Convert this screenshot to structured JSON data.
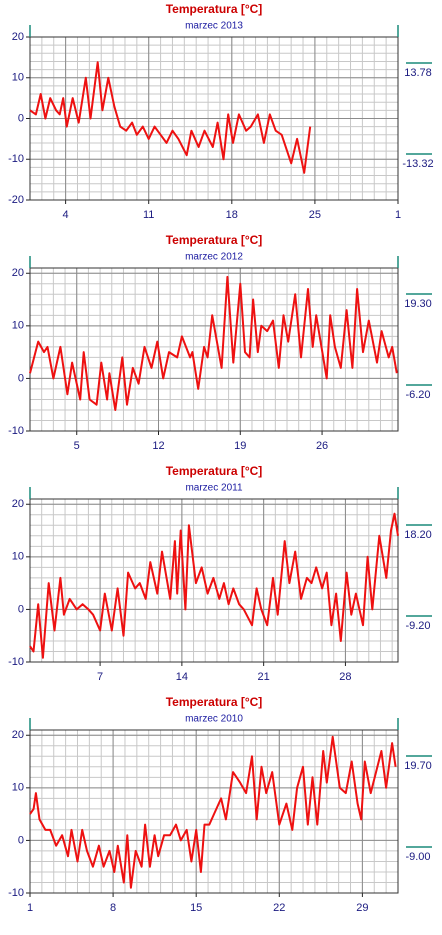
{
  "chart_data": [
    {
      "type": "line",
      "title": "Temperatura [°C]",
      "subtitle": "marzec 2013",
      "color": "#ee1111",
      "x": [
        1,
        1.5,
        1.9,
        2.3,
        2.7,
        3.2,
        3.5,
        3.8,
        4.1,
        4.6,
        5.1,
        5.7,
        6.1,
        6.7,
        7.1,
        7.6,
        8.1,
        8.6,
        9.1,
        9.6,
        10,
        10.5,
        11,
        11.5,
        12,
        12.5,
        13,
        13.5,
        14.2,
        14.6,
        15.2,
        15.7,
        16.4,
        16.8,
        17.3,
        17.7,
        18.1,
        18.6,
        19.2,
        19.6,
        20.2,
        20.7,
        21.2,
        21.7,
        22.2,
        23,
        23.5,
        24.1,
        24.6
      ],
      "values": [
        2,
        1,
        6,
        0,
        5,
        2,
        1,
        5,
        -2,
        5,
        -1,
        10,
        0,
        13.78,
        2,
        10,
        3,
        -2,
        -3,
        -1,
        -4,
        -2,
        -5,
        -2,
        -4,
        -6,
        -3,
        -5,
        -9,
        -3,
        -7,
        -3,
        -7,
        -1,
        -10,
        1,
        -6,
        1,
        -3,
        -2,
        1,
        -6,
        1,
        -3,
        -4,
        -11,
        -5,
        -13.32,
        -2
      ],
      "xlim": [
        1,
        32
      ],
      "xticks": [
        4,
        11,
        18,
        25,
        {
          "value": 32,
          "label": "1"
        }
      ],
      "ylim": [
        -20,
        20
      ],
      "yticks": [
        -20,
        -10,
        0,
        10,
        20
      ],
      "annotations": [
        13.78,
        -13.32
      ],
      "grid": true
    },
    {
      "type": "line",
      "title": "Temperatura [°C]",
      "subtitle": "marzec 2012",
      "color": "#ee1111",
      "x": [
        1,
        1.7,
        2.2,
        2.5,
        3,
        3.6,
        4.2,
        4.6,
        5.3,
        5.6,
        6.1,
        6.7,
        7.1,
        7.6,
        7.8,
        8.3,
        8.9,
        9.3,
        9.8,
        10.3,
        10.8,
        11.4,
        11.9,
        12.4,
        12.9,
        13.6,
        14,
        14.7,
        14.9,
        15.4,
        15.9,
        16.2,
        16.6,
        17.4,
        17.9,
        18.4,
        19,
        19.4,
        19.8,
        20.1,
        20.5,
        20.8,
        21.3,
        21.8,
        22.3,
        22.7,
        23.1,
        23.7,
        24.2,
        24.8,
        25.2,
        25.5,
        26.4,
        26.7,
        27.1,
        27.6,
        28.1,
        28.6,
        29,
        29.5,
        30,
        30.7,
        31.1,
        31.7,
        32,
        32.4
      ],
      "values": [
        1,
        7,
        5,
        6,
        0,
        6,
        -3,
        3,
        -4,
        5,
        -4,
        -5,
        3,
        -4,
        1,
        -6,
        4,
        -5,
        2,
        -1,
        6,
        2,
        7,
        0,
        5,
        4,
        8,
        4,
        5,
        -2,
        6,
        4,
        12,
        2,
        19.3,
        3,
        18,
        5,
        4,
        15,
        5,
        10,
        9,
        11,
        2,
        12,
        7,
        16,
        4,
        17,
        6,
        12,
        0,
        12,
        6,
        2,
        13,
        2,
        17,
        5,
        11,
        3,
        9,
        4,
        6,
        1
      ],
      "xlim": [
        1,
        32.5
      ],
      "xticks": [
        5,
        12,
        19,
        26
      ],
      "ylim": [
        -10,
        21
      ],
      "yticks": [
        -10,
        0,
        10,
        20
      ],
      "annotations": [
        {
          "value": 19.3,
          "label": "19.30"
        },
        {
          "value": -6.2,
          "label": "-6.20"
        }
      ],
      "grid": true
    },
    {
      "type": "line",
      "title": "Temperatura [°C]",
      "subtitle": "marzec 2011",
      "color": "#ee1111",
      "x": [
        1,
        1.3,
        1.7,
        2.1,
        2.6,
        3.1,
        3.6,
        3.9,
        4.4,
        5,
        5.5,
        6,
        6.4,
        7,
        7.4,
        8,
        8.5,
        9,
        9.4,
        10,
        10.4,
        10.9,
        11.3,
        11.9,
        12.3,
        13,
        13.4,
        13.6,
        13.9,
        14.3,
        14.6,
        15.2,
        15.7,
        16.2,
        16.7,
        17.2,
        17.6,
        18,
        18.4,
        18.9,
        19.3,
        20,
        20.4,
        20.8,
        21.3,
        21.8,
        22.2,
        22.8,
        23.2,
        23.7,
        24.2,
        24.7,
        25.1,
        25.5,
        26,
        26.4,
        26.8,
        27.2,
        27.6,
        28.1,
        28.5,
        28.9,
        29.5,
        29.9,
        30.3,
        30.9,
        31.5,
        31.9,
        32.2,
        32.5
      ],
      "values": [
        -7,
        -8,
        1,
        -9.2,
        5,
        -4,
        6,
        -1,
        2,
        0,
        1,
        0,
        -1,
        -4,
        3,
        -4,
        4,
        -5,
        7,
        4,
        5,
        2,
        9,
        3,
        11,
        2,
        13,
        3,
        15,
        0,
        16,
        5,
        8,
        3,
        6,
        2,
        5,
        1,
        4,
        1,
        0,
        -3,
        4,
        0,
        -3,
        6,
        -1,
        13,
        5,
        11,
        2,
        6,
        5,
        8,
        4,
        7,
        -3,
        3,
        -6,
        7,
        -1,
        3,
        -3,
        10,
        0,
        14,
        6,
        15,
        18.2,
        14
      ],
      "xlim": [
        1,
        32.5
      ],
      "xticks": [
        7,
        14,
        21,
        28
      ],
      "ylim": [
        -10,
        21
      ],
      "yticks": [
        -10,
        0,
        10,
        20
      ],
      "annotations": [
        {
          "value": 18.2,
          "label": "18.20"
        },
        {
          "value": -9.2,
          "label": "-9.20"
        }
      ],
      "grid": true
    },
    {
      "type": "line",
      "title": "Temperatura [°C]",
      "subtitle": "marzec 2010",
      "color": "#ee1111",
      "x": [
        1,
        1.3,
        1.5,
        1.8,
        2.3,
        2.7,
        3.2,
        3.7,
        4.2,
        4.5,
        5,
        5.4,
        5.8,
        6.3,
        6.8,
        7.2,
        7.7,
        8.1,
        8.4,
        8.9,
        9.2,
        9.5,
        9.9,
        10.4,
        10.7,
        11.1,
        11.5,
        11.8,
        12.3,
        12.8,
        13.3,
        13.7,
        14.2,
        14.6,
        15,
        15.4,
        15.7,
        16.1,
        16.5,
        17.1,
        17.5,
        18.1,
        18.7,
        19.2,
        19.7,
        20.1,
        20.5,
        20.9,
        21.4,
        22,
        22.6,
        23.1,
        23.5,
        24,
        24.4,
        24.8,
        25.2,
        25.7,
        26,
        26.5,
        27.1,
        27.6,
        28.1,
        28.6,
        28.9,
        29.2,
        29.7,
        30.6,
        31,
        31.5,
        31.8
      ],
      "values": [
        5,
        6,
        9,
        4,
        2,
        2,
        -1,
        1,
        -3,
        2,
        -4,
        2,
        -2,
        -5,
        -1,
        -5,
        -2,
        -6,
        -1,
        -8,
        1,
        -9,
        -2,
        -5,
        3,
        -5,
        1,
        -3,
        1,
        1,
        3,
        0,
        2,
        -4,
        2,
        -6,
        3,
        3,
        5,
        8,
        4,
        13,
        11,
        9,
        16,
        4,
        14,
        9,
        13,
        3,
        7,
        2,
        10,
        14,
        3,
        12,
        3,
        17,
        11,
        19.7,
        10,
        9,
        15,
        7,
        4,
        15,
        9,
        17,
        10,
        18.5,
        14
      ],
      "xlim": [
        1,
        32
      ],
      "xticks": [
        1,
        8,
        15,
        22,
        29
      ],
      "ylim": [
        -10,
        21
      ],
      "yticks": [
        -10,
        0,
        10,
        20
      ],
      "annotations": [
        {
          "value": 19.7,
          "label": "19.70"
        },
        {
          "value": -9,
          "label": "-9.00"
        }
      ],
      "grid": true
    }
  ]
}
